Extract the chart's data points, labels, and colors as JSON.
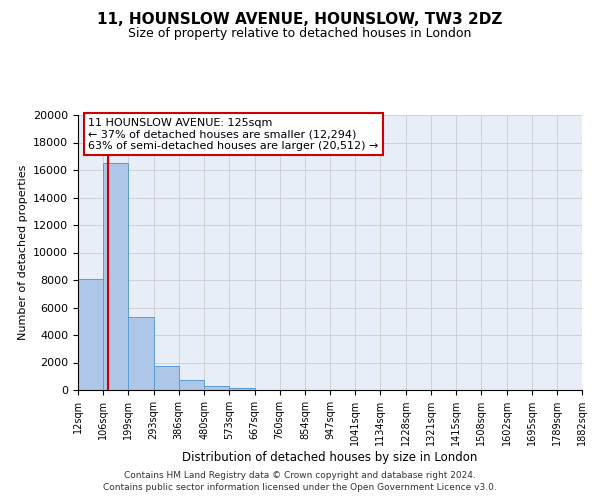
{
  "title": "11, HOUNSLOW AVENUE, HOUNSLOW, TW3 2DZ",
  "subtitle": "Size of property relative to detached houses in London",
  "xlabel": "Distribution of detached houses by size in London",
  "ylabel": "Number of detached properties",
  "bar_heights": [
    8100,
    16500,
    5300,
    1750,
    750,
    300,
    150,
    0,
    0,
    0,
    0,
    0,
    0,
    0,
    0,
    0,
    0,
    0,
    0,
    0
  ],
  "bin_edges": [
    12,
    106,
    199,
    293,
    386,
    480,
    573,
    667,
    760,
    854,
    947,
    1041,
    1134,
    1228,
    1321,
    1415,
    1508,
    1602,
    1695,
    1789,
    1882
  ],
  "tick_labels": [
    "12sqm",
    "106sqm",
    "199sqm",
    "293sqm",
    "386sqm",
    "480sqm",
    "573sqm",
    "667sqm",
    "760sqm",
    "854sqm",
    "947sqm",
    "1041sqm",
    "1134sqm",
    "1228sqm",
    "1321sqm",
    "1415sqm",
    "1508sqm",
    "1602sqm",
    "1695sqm",
    "1789sqm",
    "1882sqm"
  ],
  "bar_color": "#aec6e8",
  "bar_edge_color": "#5b9bd5",
  "property_size": 125,
  "vline_color": "#cc0000",
  "annotation_title": "11 HOUNSLOW AVENUE: 125sqm",
  "annotation_line1": "← 37% of detached houses are smaller (12,294)",
  "annotation_line2": "63% of semi-detached houses are larger (20,512) →",
  "annotation_box_color": "#ffffff",
  "annotation_box_edge": "#cc0000",
  "ylim": [
    0,
    20000
  ],
  "yticks": [
    0,
    2000,
    4000,
    6000,
    8000,
    10000,
    12000,
    14000,
    16000,
    18000,
    20000
  ],
  "footer_line1": "Contains HM Land Registry data © Crown copyright and database right 2024.",
  "footer_line2": "Contains public sector information licensed under the Open Government Licence v3.0.",
  "bg_color": "#e8eef8"
}
